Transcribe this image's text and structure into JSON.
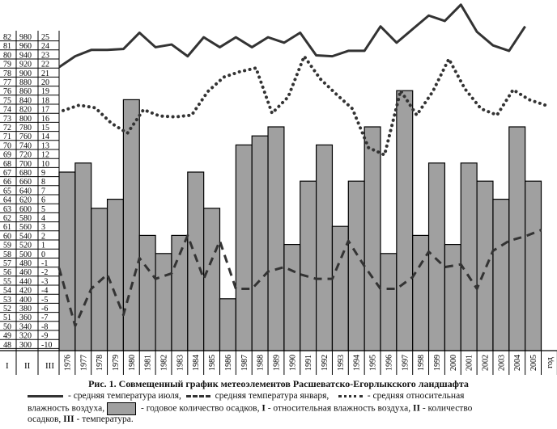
{
  "chart_data": {
    "type": "bar",
    "title": "Рис. 1.   Совмещенный график метеоэлементов Расшеватско-Егорлыкского ландшафта",
    "categories": [
      "1976",
      "1977",
      "1978",
      "1979",
      "1980",
      "1981",
      "1982",
      "1983",
      "1984",
      "1985",
      "1986",
      "1987",
      "1988",
      "1989",
      "1990",
      "1991",
      "1992",
      "1993",
      "1994",
      "1995",
      "1996",
      "1997",
      "1998",
      "1999",
      "2000",
      "2001",
      "2002",
      "2003",
      "2004",
      "2005",
      "год"
    ],
    "axis_headers": [
      "I",
      "II",
      "III"
    ],
    "axis_I_ticks": [
      "82",
      "81",
      "80",
      "79",
      "78",
      "77",
      "76",
      "75",
      "74",
      "73",
      "72",
      "71",
      "70",
      "69",
      "68",
      "67",
      "66",
      "65",
      "64",
      "63",
      "62",
      "61",
      "60",
      "59",
      "58",
      "57",
      "56",
      "55",
      "54",
      "53",
      "52",
      "51",
      "50",
      "49",
      "48"
    ],
    "axis_II_ticks": [
      "980",
      "960",
      "940",
      "920",
      "900",
      "880",
      "860",
      "840",
      "820",
      "800",
      "780",
      "760",
      "740",
      "720",
      "700",
      "680",
      "660",
      "640",
      "620",
      "600",
      "580",
      "560",
      "540",
      "520",
      "500",
      "480",
      "460",
      "440",
      "420",
      "400",
      "380",
      "360",
      "340",
      "320",
      "300"
    ],
    "axis_III_ticks": [
      "25",
      "24",
      "23",
      "22",
      "21",
      "20",
      "19",
      "18",
      "17",
      "16",
      "15",
      "14",
      "13",
      "12",
      "10",
      "9",
      "8",
      "7",
      "6",
      "5",
      "4",
      "3",
      "2",
      "1",
      "0",
      "-1",
      "-2",
      "-3",
      "-4",
      "-5",
      "-6",
      "-7",
      "-8",
      "-9",
      "-10"
    ],
    "ylim_I": [
      48,
      82
    ],
    "ylim_II": [
      300,
      980
    ],
    "ylim_III": [
      -10,
      25
    ],
    "series": [
      {
        "name": "годовое количество осадков",
        "type": "bar",
        "axis": "II",
        "color": "#a0a0a0",
        "values": [
          680,
          700,
          600,
          620,
          840,
          540,
          500,
          540,
          680,
          600,
          400,
          740,
          760,
          780,
          520,
          660,
          740,
          560,
          660,
          780,
          500,
          860,
          540,
          700,
          520,
          700,
          660,
          620,
          780,
          660,
          null
        ]
      },
      {
        "name": "средняя температура июля",
        "type": "line",
        "style": "solid",
        "axis": "III",
        "color": "#333333",
        "values": [
          21.6,
          22.8,
          23.5,
          23.5,
          23.6,
          25.4,
          23.8,
          24.1,
          22.8,
          24.9,
          23.8,
          24.9,
          23.8,
          24.9,
          24.3,
          25.4,
          22.9,
          22.8,
          23.4,
          23.4,
          26.1,
          24.3,
          25.8,
          27.3,
          26.7,
          28.5,
          25.5,
          24.0,
          23.4,
          26.1,
          null
        ]
      },
      {
        "name": "средняя температура января",
        "type": "line",
        "style": "dashed",
        "axis": "III",
        "color": "#333333",
        "values": [
          -1.6,
          -8.0,
          -3.9,
          -2.3,
          -6.8,
          -0.5,
          -2.8,
          -2.2,
          2.0,
          -2.8,
          1.4,
          -3.9,
          -3.9,
          -2.0,
          -1.5,
          -2.3,
          -2.8,
          -2.8,
          1.4,
          -1.4,
          -3.9,
          -3.9,
          -2.6,
          0.2,
          -1.5,
          -1.2,
          -3.9,
          0.3,
          1.4,
          1.9,
          2.6
        ]
      },
      {
        "name": "средняя относительная влажность воздуха",
        "type": "line",
        "style": "dotted",
        "axis": "I",
        "color": "#333333",
        "values": [
          73.8,
          74.4,
          74.1,
          72.4,
          71.3,
          73.9,
          73.2,
          73.1,
          73.3,
          75.9,
          77.5,
          78.1,
          78.5,
          73.5,
          75.3,
          79.8,
          77.3,
          75.6,
          74.0,
          69.7,
          68.9,
          76.0,
          73.3,
          75.9,
          79.5,
          76.2,
          74.0,
          73.3,
          76.1,
          75.0,
          74.4
        ]
      }
    ]
  },
  "caption": {
    "legend_july": "-  средняя температура июля,",
    "legend_jan": "средняя температура января,",
    "legend_hum_a": "-  средняя относительная",
    "legend_hum_b": "влажность воздуха,",
    "legend_precip": "- годовое количество осадков,",
    "legend_I_key": "I",
    "legend_I": "- относительная влажность воздуха,",
    "legend_II_key": "II",
    "legend_II": "- количество",
    "legend_II_b": "осадков,",
    "legend_III_key": "III",
    "legend_III": "-  температура."
  }
}
